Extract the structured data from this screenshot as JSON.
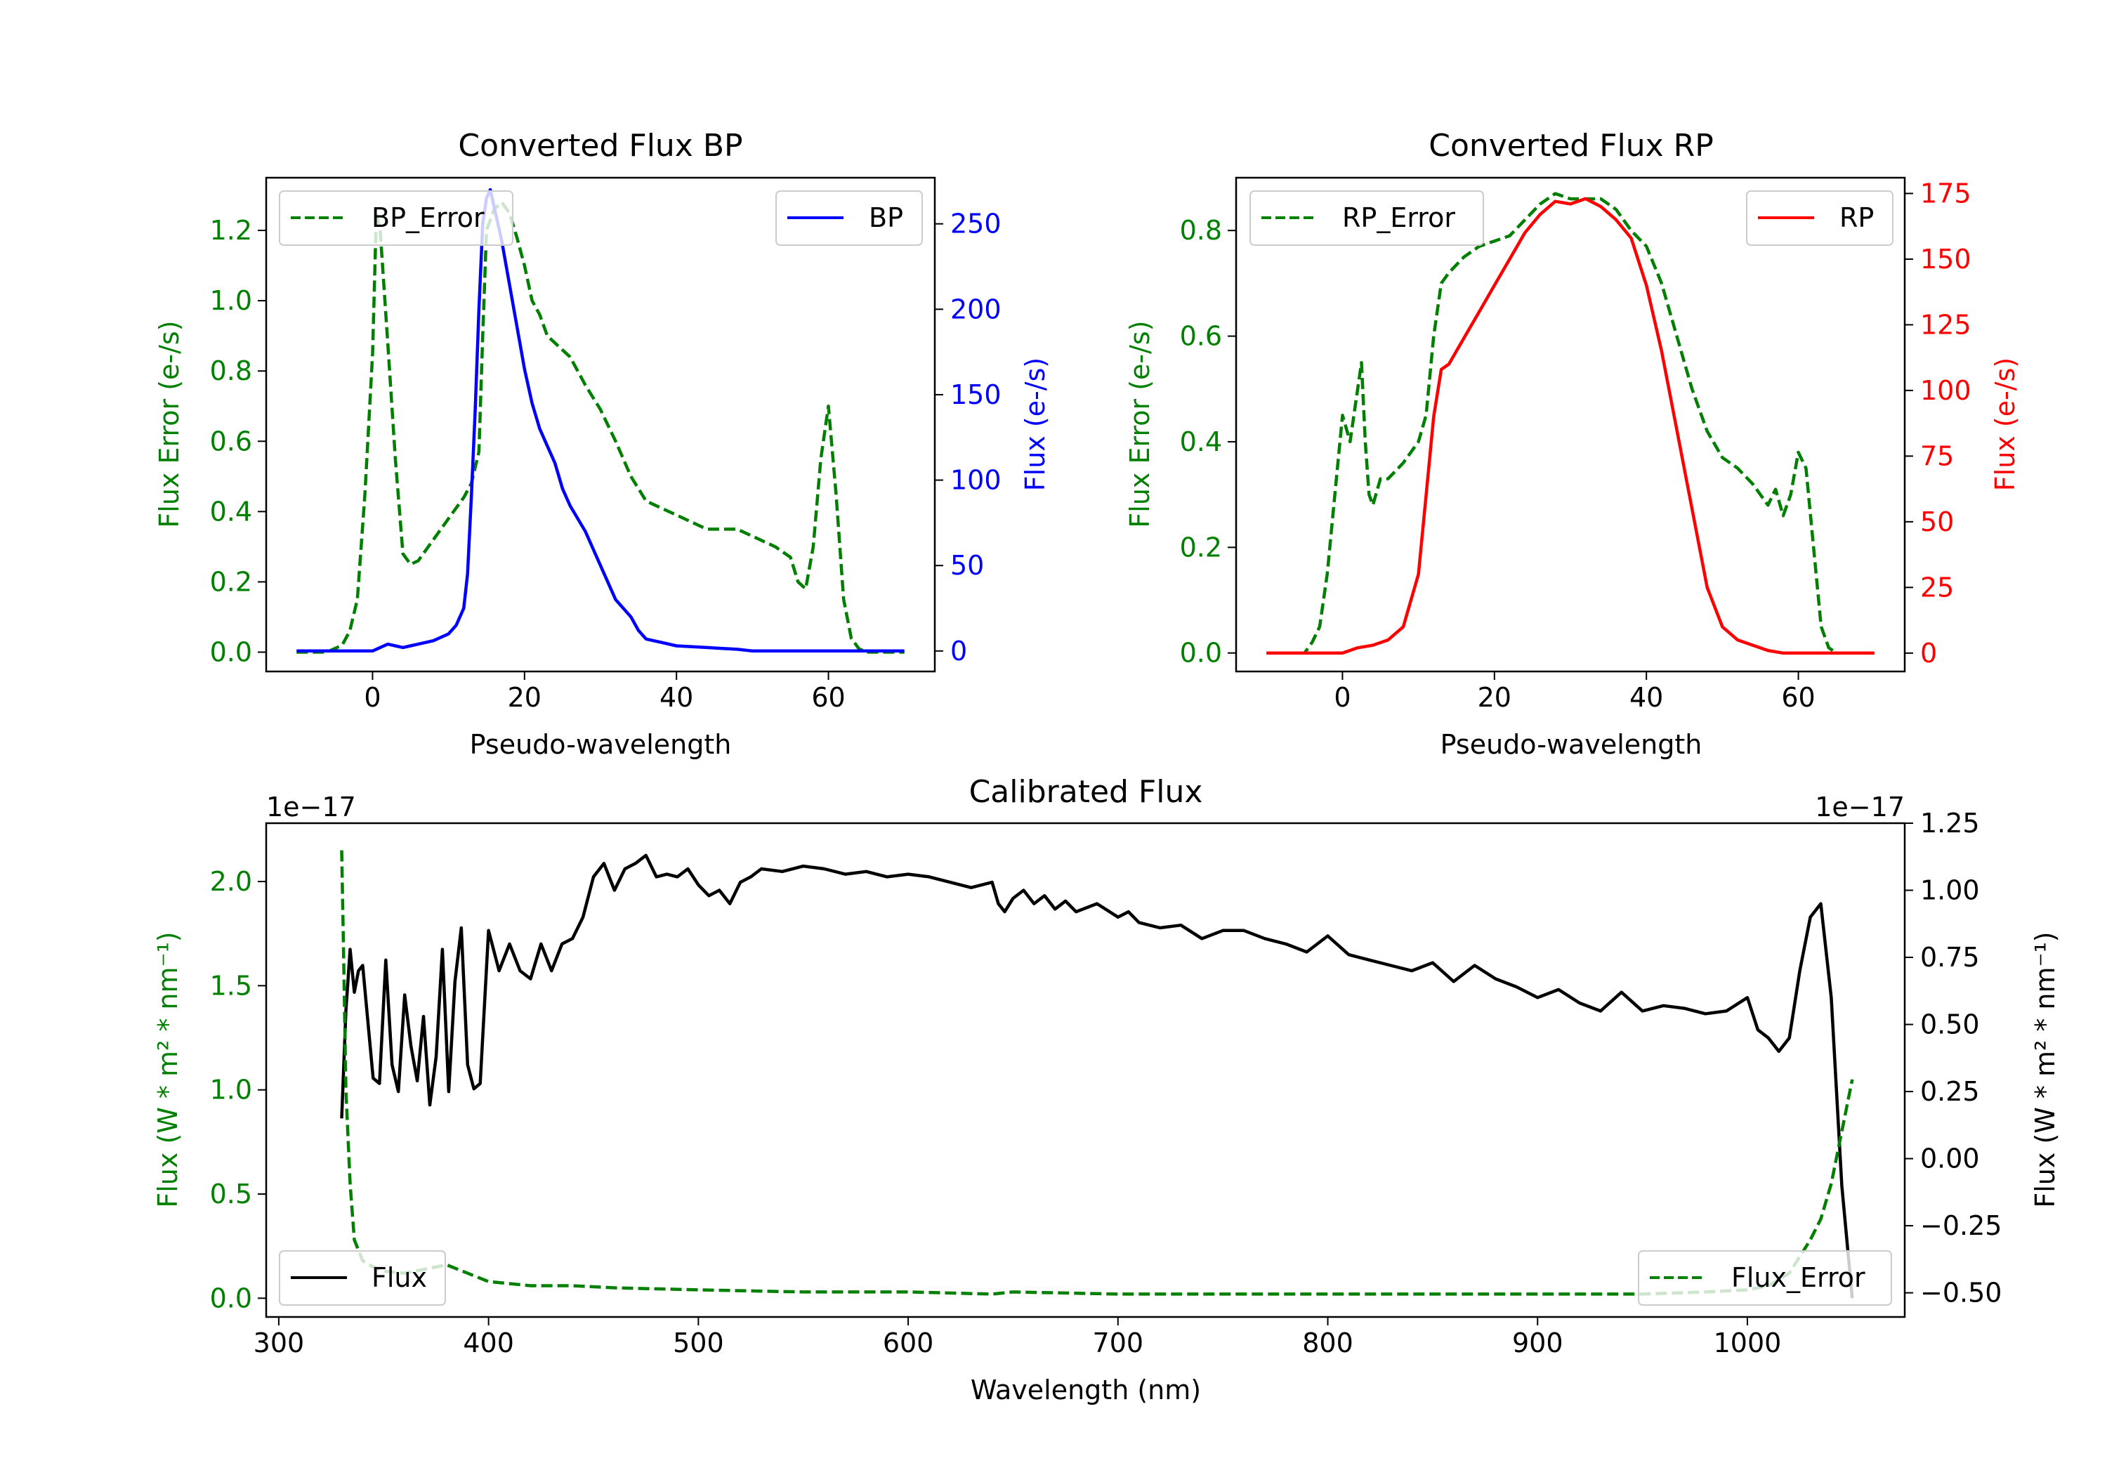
{
  "chart_data": [
    {
      "type": "line",
      "title": "Converted Flux BP",
      "xlabel": "Pseudo-wavelength",
      "ylabel_left": "Flux Error (e-/s)",
      "ylabel_right": "Flux (e-/s)",
      "xlim": [
        -14,
        74
      ],
      "ylim_left": [
        -0.055,
        1.35
      ],
      "ylim_right": [
        -12,
        277
      ],
      "xticks": [
        0,
        20,
        40,
        60
      ],
      "yticks_left": [
        0.0,
        0.2,
        0.4,
        0.6,
        0.8,
        1.0,
        1.2
      ],
      "yticks_right": [
        0,
        50,
        100,
        150,
        200,
        250
      ],
      "series": [
        {
          "name": "BP_Error",
          "axis": "left",
          "color": "#007f00",
          "dash": true,
          "x": [
            -10,
            -6,
            -4,
            -3,
            -2,
            -1,
            0,
            0.5,
            1,
            2,
            3,
            4,
            5,
            6,
            7,
            8,
            10,
            12,
            13,
            14,
            14.5,
            15,
            16,
            17,
            18,
            19,
            20,
            21,
            22,
            23,
            24,
            26,
            28,
            30,
            32,
            34,
            36,
            40,
            44,
            48,
            50,
            53,
            55,
            56,
            57,
            58,
            59,
            60,
            61,
            62,
            63,
            64,
            65,
            70
          ],
          "values": [
            0,
            0,
            0.02,
            0.06,
            0.15,
            0.45,
            0.85,
            1.25,
            1.2,
            0.88,
            0.55,
            0.28,
            0.25,
            0.26,
            0.29,
            0.32,
            0.38,
            0.44,
            0.48,
            0.57,
            0.9,
            1.2,
            1.26,
            1.28,
            1.25,
            1.18,
            1.1,
            1.0,
            0.96,
            0.9,
            0.88,
            0.84,
            0.76,
            0.69,
            0.6,
            0.5,
            0.43,
            0.39,
            0.35,
            0.35,
            0.33,
            0.3,
            0.27,
            0.2,
            0.18,
            0.3,
            0.55,
            0.7,
            0.45,
            0.15,
            0.04,
            0.01,
            0,
            0
          ]
        },
        {
          "name": "BP",
          "axis": "right",
          "color": "#0000ff",
          "dash": false,
          "x": [
            -10,
            -6,
            -4,
            -2,
            0,
            1,
            2,
            3,
            4,
            5,
            6,
            8,
            10,
            11,
            12,
            12.5,
            13,
            13.5,
            14,
            14.5,
            15,
            15.5,
            16,
            17,
            18,
            19,
            20,
            21,
            22,
            23,
            24,
            25,
            26,
            28,
            30,
            32,
            34,
            35,
            36,
            38,
            40,
            44,
            48,
            50,
            54,
            60,
            64,
            66,
            70
          ],
          "values": [
            0,
            0,
            0,
            0,
            0,
            2,
            4,
            3,
            2,
            3,
            4,
            6,
            10,
            15,
            25,
            45,
            90,
            140,
            200,
            250,
            265,
            270,
            260,
            240,
            215,
            190,
            165,
            145,
            130,
            120,
            110,
            95,
            85,
            70,
            50,
            30,
            20,
            12,
            7,
            5,
            3,
            2,
            1,
            0,
            0,
            0,
            0,
            0,
            0
          ]
        }
      ],
      "legend": [
        {
          "label": "BP_Error",
          "position": "upper-left"
        },
        {
          "label": "BP",
          "position": "upper-right"
        }
      ]
    },
    {
      "type": "line",
      "title": "Converted Flux RP",
      "xlabel": "Pseudo-wavelength",
      "ylabel_left": "Flux Error (e-/s)",
      "ylabel_right": "Flux (e-/s)",
      "xlim": [
        -14,
        74
      ],
      "ylim_left": [
        -0.035,
        0.9
      ],
      "ylim_right": [
        -7,
        181
      ],
      "xticks": [
        0,
        20,
        40,
        60
      ],
      "yticks_left": [
        0.0,
        0.2,
        0.4,
        0.6,
        0.8
      ],
      "yticks_right": [
        0,
        25,
        50,
        75,
        100,
        125,
        150,
        175
      ],
      "series": [
        {
          "name": "RP_Error",
          "axis": "left",
          "color": "#007f00",
          "dash": true,
          "x": [
            -10,
            -5,
            -4,
            -3,
            -2,
            -1,
            0,
            1,
            2,
            2.5,
            3,
            3.5,
            4,
            5,
            6,
            8,
            10,
            11,
            12,
            13,
            14,
            16,
            18,
            20,
            22,
            24,
            26,
            28,
            30,
            32,
            34,
            36,
            38,
            40,
            42,
            44,
            46,
            48,
            50,
            52,
            54,
            56,
            57,
            58,
            59,
            60,
            61,
            62,
            63,
            64,
            65,
            70
          ],
          "values": [
            0,
            0,
            0.02,
            0.05,
            0.15,
            0.3,
            0.45,
            0.4,
            0.5,
            0.55,
            0.4,
            0.3,
            0.28,
            0.33,
            0.33,
            0.36,
            0.4,
            0.45,
            0.6,
            0.7,
            0.72,
            0.75,
            0.77,
            0.78,
            0.79,
            0.82,
            0.85,
            0.87,
            0.86,
            0.86,
            0.86,
            0.84,
            0.8,
            0.77,
            0.7,
            0.6,
            0.5,
            0.42,
            0.37,
            0.35,
            0.32,
            0.28,
            0.31,
            0.26,
            0.3,
            0.38,
            0.35,
            0.2,
            0.05,
            0.01,
            0,
            0
          ]
        },
        {
          "name": "RP",
          "axis": "right",
          "color": "#ff0000",
          "dash": false,
          "x": [
            -10,
            -4,
            0,
            2,
            4,
            6,
            8,
            10,
            11,
            12,
            13,
            14,
            16,
            18,
            20,
            22,
            24,
            26,
            28,
            30,
            32,
            34,
            36,
            38,
            40,
            42,
            44,
            46,
            48,
            50,
            52,
            54,
            56,
            58,
            60,
            64,
            66,
            70
          ],
          "values": [
            0,
            0,
            0,
            2,
            3,
            5,
            10,
            30,
            60,
            90,
            108,
            110,
            120,
            130,
            140,
            150,
            160,
            167,
            172,
            171,
            173,
            170,
            165,
            158,
            140,
            115,
            85,
            55,
            25,
            10,
            5,
            3,
            1,
            0,
            0,
            0,
            0,
            0
          ]
        }
      ],
      "legend": [
        {
          "label": "RP_Error",
          "position": "upper-left"
        },
        {
          "label": "RP",
          "position": "upper-right"
        }
      ]
    },
    {
      "type": "line",
      "title": "Calibrated Flux",
      "xlabel": "Wavelength (nm)",
      "ylabel_left": "Flux (W * m² * nm⁻¹)",
      "ylabel_right": "Flux (W * m² * nm⁻¹)",
      "offset_left": "1e−17",
      "offset_right": "1e−17",
      "xlim": [
        294,
        1075
      ],
      "ylim_left": [
        -0.09,
        2.28
      ],
      "ylim_right": [
        -0.59,
        1.25
      ],
      "xticks": [
        300,
        400,
        500,
        600,
        700,
        800,
        900,
        1000
      ],
      "yticks_left": [
        0.0,
        0.5,
        1.0,
        1.5,
        2.0
      ],
      "yticks_right": [
        -0.5,
        -0.25,
        0.0,
        0.25,
        0.5,
        0.75,
        1.0,
        1.25
      ],
      "series": [
        {
          "name": "Flux",
          "axis": "right",
          "color": "#000000",
          "dash": false,
          "x": [
            330,
            332,
            334,
            336,
            338,
            340,
            342,
            345,
            348,
            351,
            354,
            357,
            360,
            363,
            366,
            369,
            372,
            375,
            378,
            381,
            384,
            387,
            390,
            393,
            396,
            400,
            405,
            410,
            415,
            420,
            425,
            430,
            435,
            440,
            445,
            450,
            455,
            460,
            465,
            470,
            475,
            480,
            485,
            490,
            495,
            500,
            505,
            510,
            515,
            520,
            525,
            530,
            540,
            550,
            560,
            570,
            580,
            590,
            600,
            610,
            620,
            630,
            640,
            643,
            646,
            650,
            655,
            660,
            665,
            670,
            675,
            680,
            690,
            700,
            705,
            710,
            720,
            730,
            740,
            750,
            760,
            770,
            780,
            790,
            800,
            810,
            820,
            830,
            840,
            850,
            860,
            870,
            880,
            890,
            900,
            910,
            920,
            930,
            940,
            950,
            960,
            970,
            980,
            990,
            1000,
            1005,
            1010,
            1015,
            1020,
            1025,
            1030,
            1035,
            1040,
            1045,
            1050
          ],
          "values": [
            0.15,
            0.55,
            0.78,
            0.62,
            0.7,
            0.72,
            0.55,
            0.3,
            0.28,
            0.74,
            0.35,
            0.25,
            0.61,
            0.42,
            0.29,
            0.53,
            0.2,
            0.38,
            0.78,
            0.25,
            0.66,
            0.86,
            0.35,
            0.26,
            0.28,
            0.85,
            0.7,
            0.8,
            0.7,
            0.67,
            0.8,
            0.7,
            0.8,
            0.82,
            0.9,
            1.05,
            1.1,
            1.0,
            1.08,
            1.1,
            1.13,
            1.05,
            1.06,
            1.05,
            1.08,
            1.02,
            0.98,
            1.0,
            0.95,
            1.03,
            1.05,
            1.08,
            1.07,
            1.09,
            1.08,
            1.06,
            1.07,
            1.05,
            1.06,
            1.05,
            1.03,
            1.01,
            1.03,
            0.95,
            0.92,
            0.97,
            1.0,
            0.95,
            0.98,
            0.93,
            0.96,
            0.92,
            0.95,
            0.9,
            0.92,
            0.88,
            0.86,
            0.87,
            0.82,
            0.85,
            0.85,
            0.82,
            0.8,
            0.77,
            0.83,
            0.76,
            0.74,
            0.72,
            0.7,
            0.73,
            0.66,
            0.72,
            0.67,
            0.64,
            0.6,
            0.63,
            0.58,
            0.55,
            0.62,
            0.55,
            0.57,
            0.56,
            0.54,
            0.55,
            0.6,
            0.48,
            0.45,
            0.4,
            0.45,
            0.7,
            0.9,
            0.95,
            0.6,
            -0.1,
            -0.52
          ],
          "note": "uses right axis scale (x 1e-17)"
        },
        {
          "name": "Flux_Error",
          "axis": "left",
          "color": "#007f00",
          "dash": true,
          "x": [
            330,
            331,
            332,
            334,
            336,
            340,
            345,
            350,
            360,
            370,
            380,
            390,
            400,
            420,
            440,
            460,
            500,
            550,
            600,
            640,
            650,
            700,
            750,
            800,
            850,
            900,
            950,
            980,
            1000,
            1010,
            1020,
            1030,
            1035,
            1040,
            1045,
            1050
          ],
          "values": [
            2.15,
            1.6,
            1.0,
            0.55,
            0.28,
            0.18,
            0.15,
            0.13,
            0.12,
            0.14,
            0.16,
            0.12,
            0.08,
            0.06,
            0.06,
            0.05,
            0.04,
            0.03,
            0.03,
            0.02,
            0.03,
            0.02,
            0.02,
            0.02,
            0.02,
            0.02,
            0.02,
            0.03,
            0.04,
            0.06,
            0.12,
            0.28,
            0.38,
            0.55,
            0.8,
            1.05
          ]
        }
      ],
      "legend": [
        {
          "label": "Flux",
          "position": "lower-left"
        },
        {
          "label": "Flux_Error",
          "position": "lower-right"
        }
      ]
    }
  ]
}
